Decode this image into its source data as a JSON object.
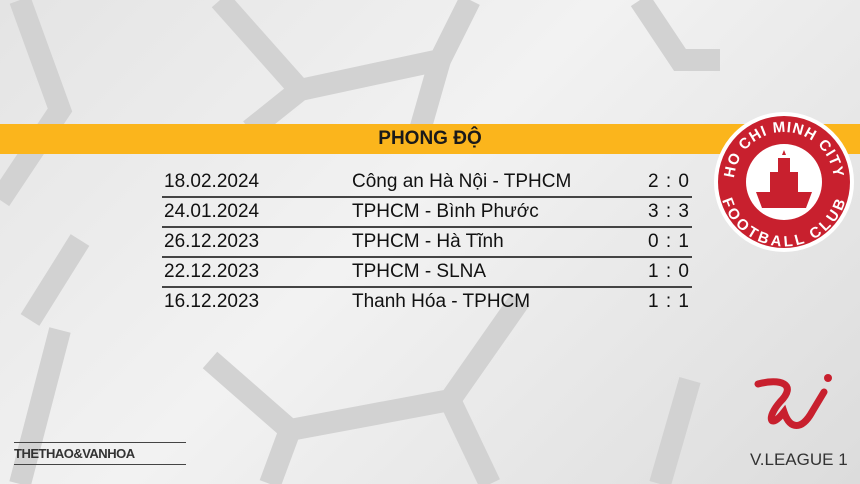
{
  "header": {
    "title": "PHONG ĐỘ"
  },
  "colors": {
    "banner": "#fbb51c",
    "club_red": "#c8202e"
  },
  "matches": [
    {
      "date": "18.02.2024",
      "match": "Công an Hà Nội - TPHCM",
      "score": "2 : 0"
    },
    {
      "date": "24.01.2024",
      "match": "TPHCM - Bình Phước",
      "score": "3 : 3"
    },
    {
      "date": "26.12.2023",
      "match": "TPHCM - Hà Tĩnh",
      "score": "0 : 1"
    },
    {
      "date": "22.12.2023",
      "match": "TPHCM - SLNA",
      "score": "1 : 0"
    },
    {
      "date": "16.12.2023",
      "match": "Thanh Hóa - TPHCM",
      "score": "1 : 1"
    }
  ],
  "logos": {
    "club": "HO CHI MINH CITY FOOTBALL CLUB",
    "publisher": "THETHAO&VANHOA",
    "league": "V.LEAGUE 1"
  }
}
